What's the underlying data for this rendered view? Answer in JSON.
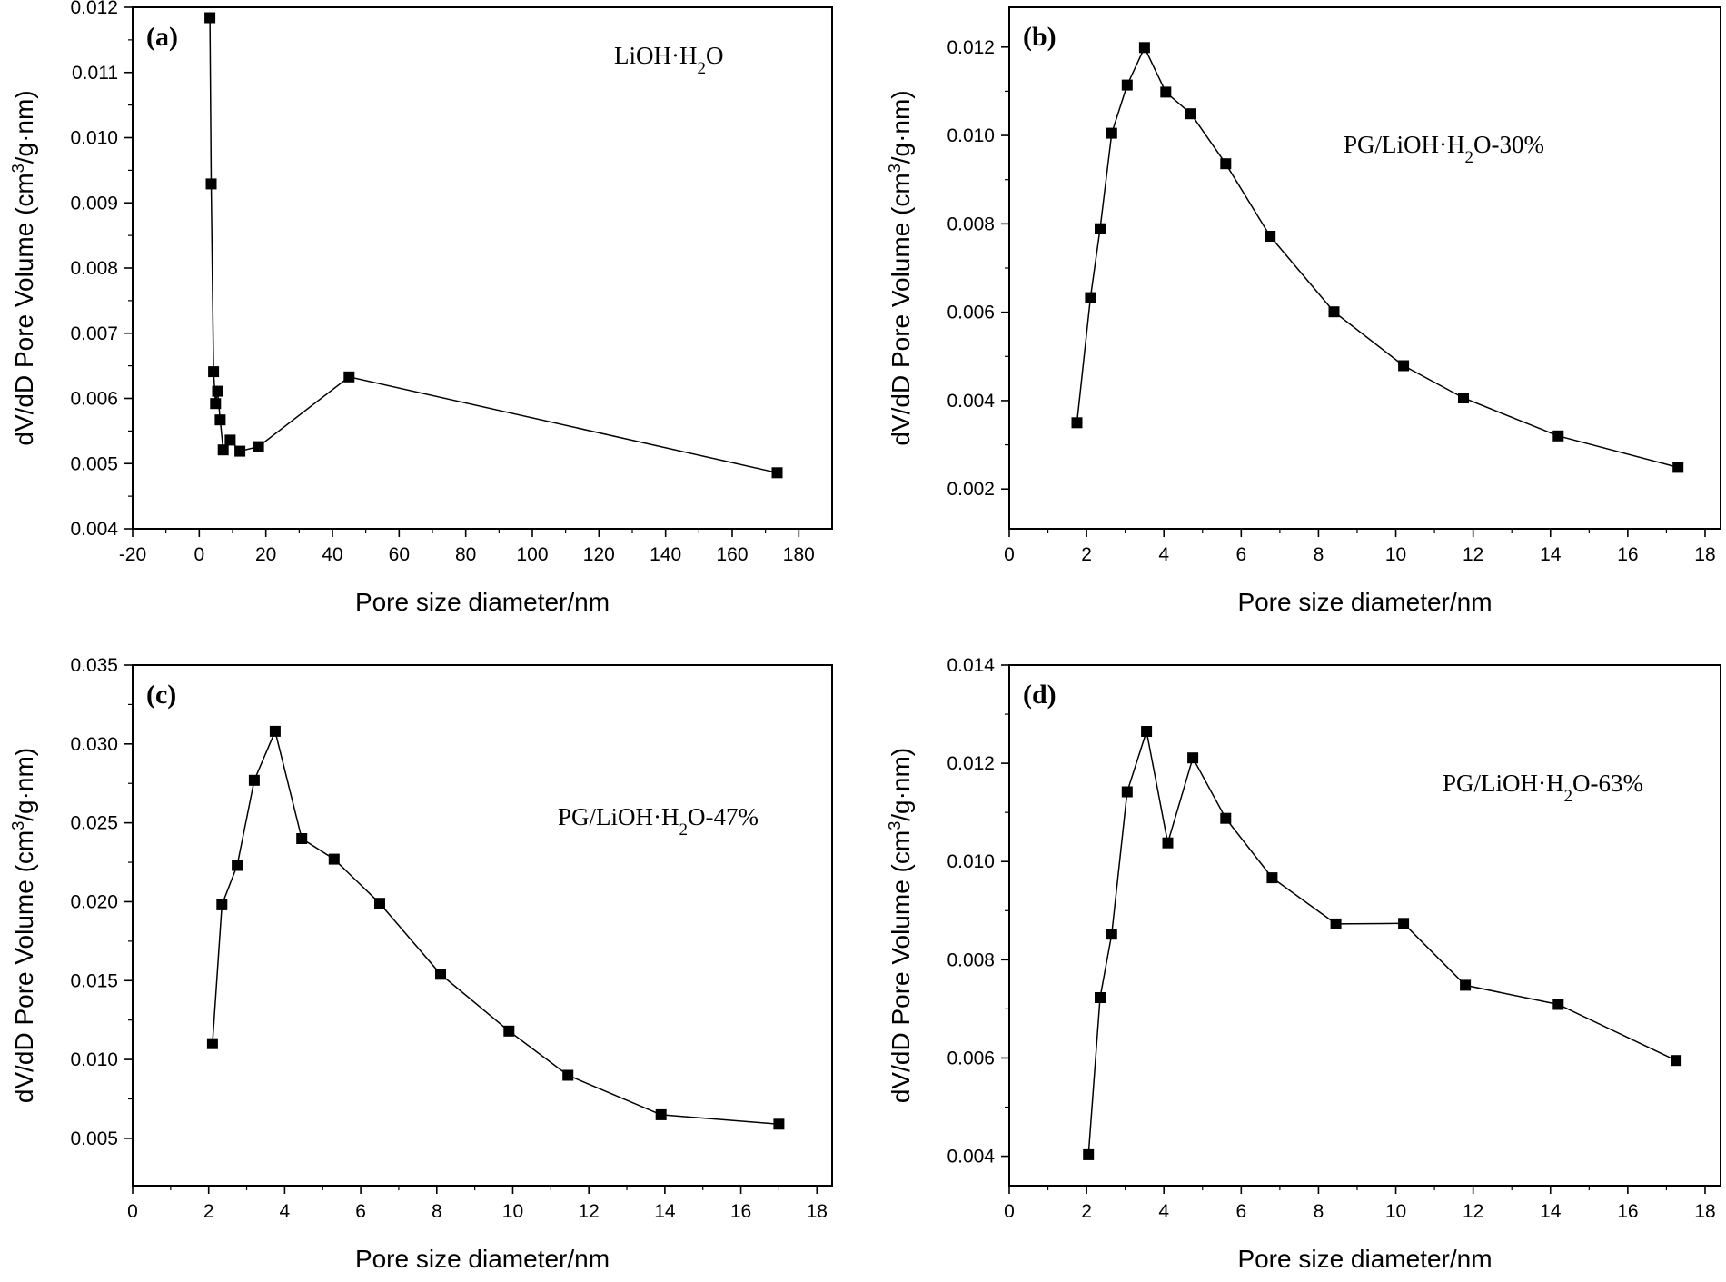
{
  "chart_data": [
    {
      "type": "line",
      "panel_label": "(a)",
      "annotation": {
        "pre": "LiOH·H",
        "sub": "2",
        "post": "O"
      },
      "xlabel": "Pore size diameter/nm",
      "ylabel": {
        "pre": "dV/dD Pore Volume (cm",
        "sup": "3",
        "post": "/g·nm)"
      },
      "xlim": [
        -20,
        190
      ],
      "ylim": [
        0.004,
        0.012
      ],
      "xticks": [
        -20,
        0,
        20,
        40,
        60,
        80,
        100,
        120,
        140,
        160,
        180
      ],
      "xtick_labels": [
        "-20",
        "0",
        "20",
        "40",
        "60",
        "80",
        "100",
        "120",
        "140",
        "160",
        "180"
      ],
      "yticks": [
        0.004,
        0.005,
        0.006,
        0.007,
        0.008,
        0.009,
        0.01,
        0.011,
        0.012
      ],
      "ytick_labels": [
        "0.004",
        "0.005",
        "0.006",
        "0.007",
        "0.008",
        "0.009",
        "0.010",
        "0.011",
        "0.012"
      ],
      "x": [
        3.2,
        3.6,
        4.3,
        4.9,
        5.5,
        6.3,
        7.2,
        9.3,
        12.2,
        17.8,
        45.0,
        173.5
      ],
      "y": [
        0.01184,
        0.00929,
        0.00641,
        0.00592,
        0.00611,
        0.00567,
        0.00521,
        0.00536,
        0.00519,
        0.00526,
        0.00633,
        0.00486
      ],
      "marker": "square",
      "color": "#000000"
    },
    {
      "type": "line",
      "panel_label": "(b)",
      "annotation": {
        "pre": "PG/LiOH·H",
        "sub": "2",
        "post": "O-30%"
      },
      "xlabel": "Pore size diameter/nm",
      "ylabel": {
        "pre": "dV/dD Pore Volume (cm",
        "sup": "3",
        "post": "/g·nm)"
      },
      "xlim": [
        0,
        18.4
      ],
      "ylim": [
        0.0011,
        0.0129
      ],
      "xticks": [
        0,
        2,
        4,
        6,
        8,
        10,
        12,
        14,
        16,
        18
      ],
      "xtick_labels": [
        "0",
        "2",
        "4",
        "6",
        "8",
        "10",
        "12",
        "14",
        "16",
        "18"
      ],
      "yticks": [
        0.002,
        0.004,
        0.006,
        0.008,
        0.01,
        0.012
      ],
      "ytick_labels": [
        "0.002",
        "0.004",
        "0.006",
        "0.008",
        "0.010",
        "0.012"
      ],
      "x": [
        1.75,
        2.1,
        2.35,
        2.65,
        3.05,
        3.5,
        4.05,
        4.7,
        5.6,
        6.75,
        8.4,
        10.2,
        11.75,
        14.2,
        17.3
      ],
      "y": [
        0.0035,
        0.00633,
        0.00789,
        0.01005,
        0.01114,
        0.01199,
        0.01098,
        0.01049,
        0.00936,
        0.00772,
        0.00601,
        0.00479,
        0.00406,
        0.0032,
        0.00249
      ],
      "marker": "square",
      "color": "#000000"
    },
    {
      "type": "line",
      "panel_label": "(c)",
      "annotation": {
        "pre": "PG/LiOH·H",
        "sub": "2",
        "post": "O-47%"
      },
      "xlabel": "Pore size diameter/nm",
      "ylabel": {
        "pre": "dV/dD Pore Volume (cm",
        "sup": "3",
        "post": "/g·nm)"
      },
      "xlim": [
        0,
        18.4
      ],
      "ylim": [
        0.002,
        0.035
      ],
      "xticks": [
        0,
        2,
        4,
        6,
        8,
        10,
        12,
        14,
        16,
        18
      ],
      "xtick_labels": [
        "0",
        "2",
        "4",
        "6",
        "8",
        "10",
        "12",
        "14",
        "16",
        "18"
      ],
      "yticks": [
        0.005,
        0.01,
        0.015,
        0.02,
        0.025,
        0.03,
        0.035
      ],
      "ytick_labels": [
        "0.005",
        "0.010",
        "0.015",
        "0.020",
        "0.025",
        "0.030",
        "0.035"
      ],
      "x": [
        2.1,
        2.35,
        2.75,
        3.2,
        3.75,
        4.45,
        5.3,
        6.5,
        8.1,
        9.9,
        11.45,
        13.9,
        17.0
      ],
      "y": [
        0.011,
        0.0198,
        0.0223,
        0.0277,
        0.0308,
        0.024,
        0.0227,
        0.0199,
        0.0154,
        0.0118,
        0.009,
        0.0065,
        0.0059
      ],
      "marker": "square",
      "color": "#000000"
    },
    {
      "type": "line",
      "panel_label": "(d)",
      "annotation": {
        "pre": "PG/LiOH·H",
        "sub": "2",
        "post": "O-63%"
      },
      "xlabel": "Pore size diameter/nm",
      "ylabel": {
        "pre": "dV/dD Pore Volume (cm",
        "sup": "3",
        "post": "/g·nm)"
      },
      "xlim": [
        0,
        18.4
      ],
      "ylim": [
        0.0034,
        0.014
      ],
      "xticks": [
        0,
        2,
        4,
        6,
        8,
        10,
        12,
        14,
        16,
        18
      ],
      "xtick_labels": [
        "0",
        "2",
        "4",
        "6",
        "8",
        "10",
        "12",
        "14",
        "16",
        "18"
      ],
      "yticks": [
        0.004,
        0.006,
        0.008,
        0.01,
        0.012,
        0.014
      ],
      "ytick_labels": [
        "0.004",
        "0.006",
        "0.008",
        "0.010",
        "0.012",
        "0.014"
      ],
      "x": [
        2.05,
        2.35,
        2.65,
        3.05,
        3.55,
        4.1,
        4.75,
        5.6,
        6.8,
        8.45,
        10.2,
        11.8,
        14.2,
        17.25
      ],
      "y": [
        0.00403,
        0.00723,
        0.00852,
        0.01142,
        0.01265,
        0.01038,
        0.01211,
        0.01088,
        0.00967,
        0.00873,
        0.00874,
        0.00748,
        0.00709,
        0.00595
      ],
      "marker": "square",
      "color": "#000000"
    }
  ]
}
